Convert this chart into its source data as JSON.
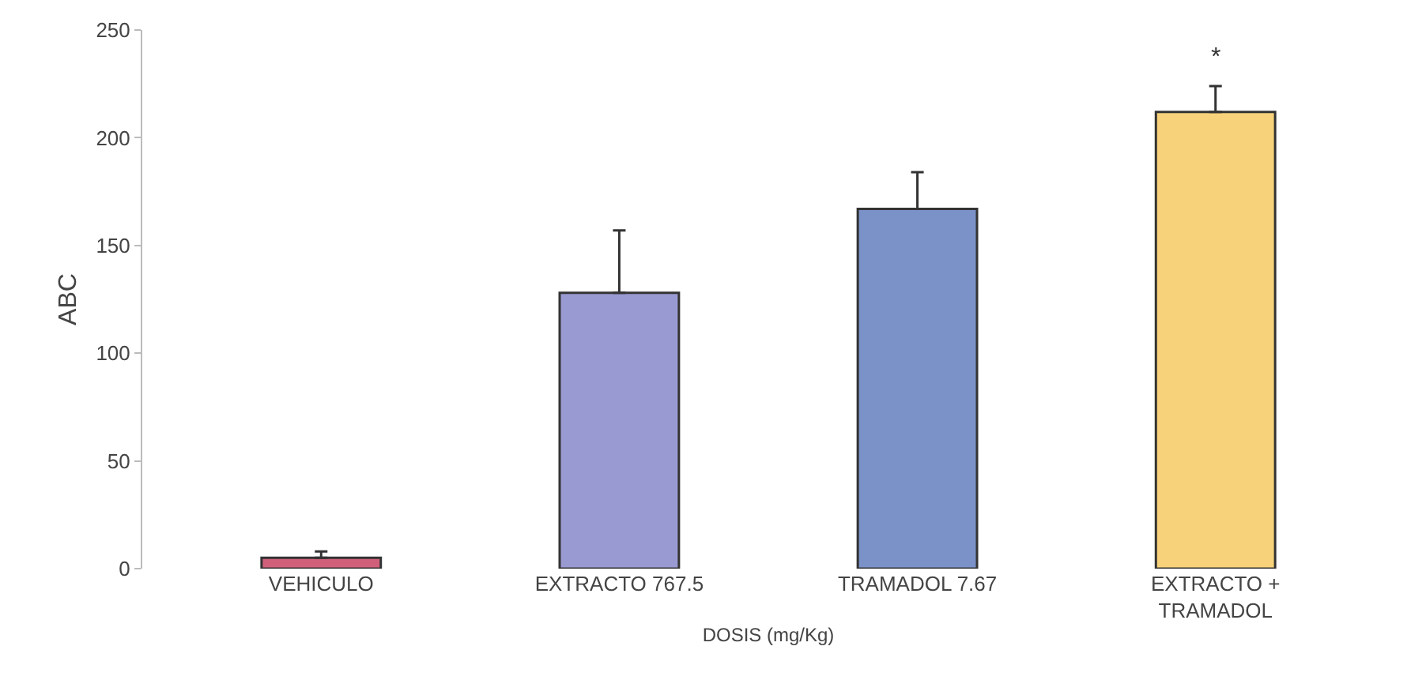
{
  "chart_data": {
    "type": "bar",
    "xlabel": "DOSIS (mg/Kg)",
    "ylabel": "ABC",
    "categories": [
      "VEHICULO",
      "EXTRACTO 767.5",
      "TRAMADOL 7.67",
      "EXTRACTO + TRAMADOL"
    ],
    "values": [
      5,
      128,
      167,
      212
    ],
    "errors": [
      [
        5,
        8
      ],
      [
        128,
        157
      ],
      [
        167,
        184
      ],
      [
        212,
        224
      ]
    ],
    "colors": [
      "#d0607a",
      "#9a9ad2",
      "#7b92c8",
      "#f8d27a"
    ],
    "ylim": [
      0,
      250
    ],
    "yticks": [
      0,
      50,
      100,
      150,
      200,
      250
    ],
    "grid": false,
    "annotations": [
      "*"
    ]
  }
}
